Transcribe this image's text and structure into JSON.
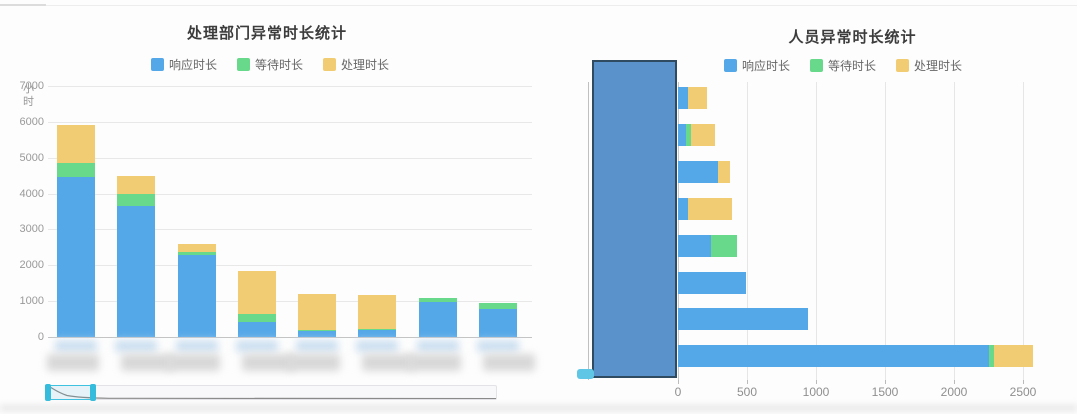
{
  "colors": {
    "response_blue": "#55a8e8",
    "wait_green": "#68d98b",
    "process_yellow": "#f2cc72",
    "datazoom_fill": "#5a92cc",
    "datazoom_border": "#2f4b61",
    "slider_cyan": "#35bcdc"
  },
  "chart_data": [
    {
      "type": "bar",
      "orientation": "vertical",
      "title": "处理部门异常时长统计",
      "y_axis_name": "小时",
      "legend": [
        "响应时长",
        "等待时长",
        "处理时长"
      ],
      "legend_position": "top-center",
      "grid": true,
      "ylim": [
        0,
        7000
      ],
      "yticks": [
        0,
        1000,
        2000,
        3000,
        4000,
        5000,
        6000,
        7000
      ],
      "categories": [
        "",
        "",
        "",
        "",
        "",
        "",
        "",
        ""
      ],
      "categories_note": "x-axis labels are blurred/redacted in screenshot",
      "series": [
        {
          "name": "响应时长",
          "color": "#55a8e8",
          "values": [
            4450,
            3650,
            2300,
            420,
            160,
            190,
            980,
            790
          ]
        },
        {
          "name": "等待时长",
          "color": "#68d98b",
          "values": [
            400,
            350,
            60,
            230,
            40,
            40,
            120,
            170
          ]
        },
        {
          "name": "处理时长",
          "color": "#f2cc72",
          "values": [
            1050,
            500,
            240,
            1180,
            1010,
            950,
            0,
            0
          ]
        }
      ],
      "totals": [
        5900,
        4500,
        2600,
        1830,
        1210,
        1180,
        1100,
        960
      ],
      "datazoom": {
        "type": "slider-horizontal",
        "window_percent": [
          0,
          10
        ]
      }
    },
    {
      "type": "bar",
      "orientation": "horizontal",
      "title": "人员异常时长统计",
      "legend": [
        "响应时长",
        "等待时长",
        "处理时长"
      ],
      "legend_position": "top-center",
      "grid": true,
      "xlim": [
        0,
        2500
      ],
      "xticks": [
        0,
        500,
        1000,
        1500,
        2000,
        2500
      ],
      "categories": [
        "",
        "",
        "",
        "",
        "",
        "",
        "",
        ""
      ],
      "categories_note": "y-axis labels hidden behind data-zoom overlay",
      "series": [
        {
          "name": "响应时长",
          "color": "#55a8e8",
          "values": [
            70,
            60,
            290,
            70,
            240,
            490,
            940,
            2250
          ]
        },
        {
          "name": "等待时长",
          "color": "#68d98b",
          "values": [
            0,
            35,
            0,
            0,
            185,
            0,
            0,
            40
          ]
        },
        {
          "name": "处理时长",
          "color": "#f2cc72",
          "values": [
            140,
            175,
            90,
            320,
            0,
            0,
            0,
            280
          ]
        }
      ],
      "totals": [
        210,
        270,
        380,
        390,
        425,
        490,
        940,
        2570
      ],
      "datazoom": {
        "type": "slider-vertical",
        "window_percent": [
          0,
          100
        ]
      }
    }
  ]
}
